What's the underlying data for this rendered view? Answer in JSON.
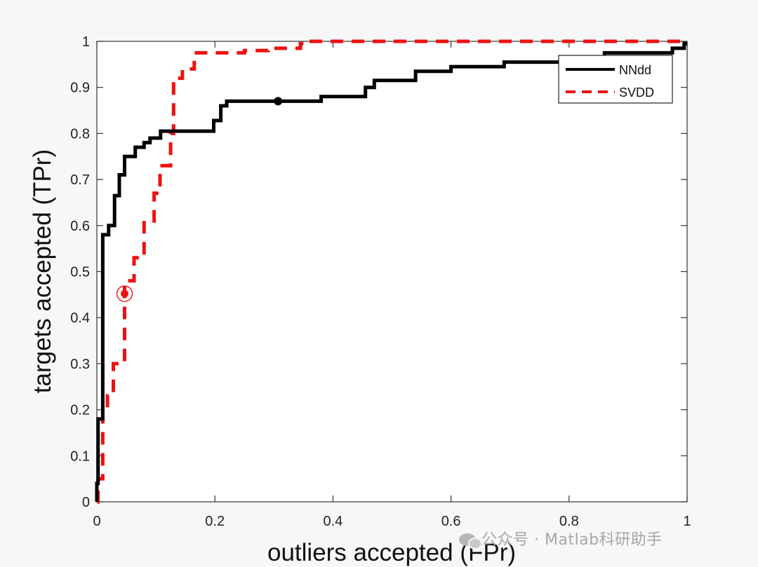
{
  "chart_data": {
    "type": "line",
    "title": "",
    "xlabel": "outliers accepted (FPr)",
    "ylabel": "targets accepted (TPr)",
    "xlim": [
      0,
      1
    ],
    "ylim": [
      0,
      1
    ],
    "xticks": [
      "0",
      "0.2",
      "0.4",
      "0.6",
      "0.8",
      "1"
    ],
    "yticks": [
      "0",
      "0.1",
      "0.2",
      "0.3",
      "0.4",
      "0.5",
      "0.6",
      "0.7",
      "0.8",
      "0.9",
      "1"
    ],
    "grid": false,
    "legend_position": "top-right",
    "series": [
      {
        "name": "NNdd",
        "color": "#000000",
        "style": "solid",
        "points": [
          [
            0,
            0
          ],
          [
            0,
            0.04
          ],
          [
            0.002,
            0.04
          ],
          [
            0.002,
            0.18
          ],
          [
            0.01,
            0.18
          ],
          [
            0.01,
            0.58
          ],
          [
            0.02,
            0.58
          ],
          [
            0.02,
            0.6
          ],
          [
            0.03,
            0.6
          ],
          [
            0.03,
            0.665
          ],
          [
            0.038,
            0.665
          ],
          [
            0.038,
            0.71
          ],
          [
            0.047,
            0.71
          ],
          [
            0.047,
            0.75
          ],
          [
            0.065,
            0.75
          ],
          [
            0.065,
            0.77
          ],
          [
            0.08,
            0.77
          ],
          [
            0.08,
            0.78
          ],
          [
            0.09,
            0.78
          ],
          [
            0.09,
            0.79
          ],
          [
            0.108,
            0.79
          ],
          [
            0.108,
            0.805
          ],
          [
            0.198,
            0.805
          ],
          [
            0.198,
            0.828
          ],
          [
            0.21,
            0.828
          ],
          [
            0.21,
            0.86
          ],
          [
            0.22,
            0.86
          ],
          [
            0.22,
            0.87
          ],
          [
            0.38,
            0.87
          ],
          [
            0.38,
            0.88
          ],
          [
            0.455,
            0.88
          ],
          [
            0.455,
            0.9
          ],
          [
            0.47,
            0.9
          ],
          [
            0.47,
            0.915
          ],
          [
            0.54,
            0.915
          ],
          [
            0.54,
            0.935
          ],
          [
            0.6,
            0.935
          ],
          [
            0.6,
            0.945
          ],
          [
            0.69,
            0.945
          ],
          [
            0.69,
            0.955
          ],
          [
            0.86,
            0.955
          ],
          [
            0.86,
            0.975
          ],
          [
            0.975,
            0.975
          ],
          [
            0.975,
            0.985
          ],
          [
            0.995,
            0.985
          ],
          [
            0.995,
            0.995
          ],
          [
            1,
            0.995
          ]
        ],
        "marker": [
          0.307,
          0.87
        ]
      },
      {
        "name": "SVDD",
        "color": "#ee1111",
        "style": "dashed",
        "points": [
          [
            0,
            0
          ],
          [
            0.002,
            0
          ],
          [
            0.002,
            0.05
          ],
          [
            0.01,
            0.05
          ],
          [
            0.01,
            0.2
          ],
          [
            0.018,
            0.2
          ],
          [
            0.018,
            0.23
          ],
          [
            0.028,
            0.23
          ],
          [
            0.028,
            0.3
          ],
          [
            0.04,
            0.3
          ],
          [
            0.047,
            0.3
          ],
          [
            0.047,
            0.48
          ],
          [
            0.063,
            0.48
          ],
          [
            0.063,
            0.53
          ],
          [
            0.08,
            0.53
          ],
          [
            0.08,
            0.61
          ],
          [
            0.097,
            0.61
          ],
          [
            0.097,
            0.67
          ],
          [
            0.107,
            0.67
          ],
          [
            0.107,
            0.73
          ],
          [
            0.125,
            0.73
          ],
          [
            0.125,
            0.8
          ],
          [
            0.13,
            0.8
          ],
          [
            0.13,
            0.92
          ],
          [
            0.145,
            0.92
          ],
          [
            0.145,
            0.94
          ],
          [
            0.165,
            0.94
          ],
          [
            0.165,
            0.975
          ],
          [
            0.25,
            0.975
          ],
          [
            0.25,
            0.98
          ],
          [
            0.29,
            0.98
          ],
          [
            0.29,
            0.985
          ],
          [
            0.345,
            0.985
          ],
          [
            0.345,
            0.995
          ],
          [
            0.355,
            0.995
          ],
          [
            0.355,
            1
          ],
          [
            1,
            1
          ]
        ],
        "marker": [
          0.047,
          0.452
        ]
      }
    ]
  },
  "watermark": {
    "text": "公众号 · Matlab科研助手",
    "icon": "wechat-icon"
  }
}
